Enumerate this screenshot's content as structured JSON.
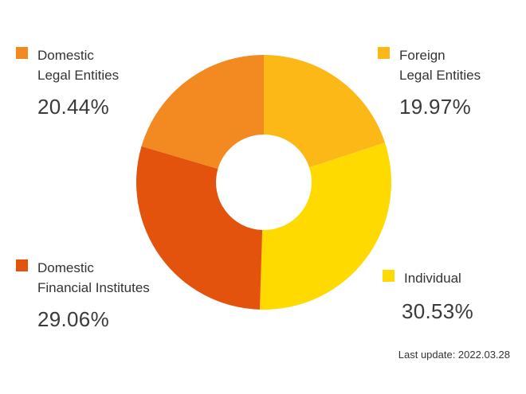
{
  "chart_data": {
    "type": "pie",
    "variant": "donut",
    "title": "",
    "segments": [
      {
        "name_lines": [
          "Domestic",
          "Legal Entities"
        ],
        "value": 20.44,
        "label": "20.44%",
        "color": "#F28A21"
      },
      {
        "name_lines": [
          "Foreign",
          "Legal Entities"
        ],
        "value": 19.97,
        "label": "19.97%",
        "color": "#FBB817"
      },
      {
        "name_lines": [
          "Individual"
        ],
        "value": 30.53,
        "label": "30.53%",
        "color": "#FFDA00"
      },
      {
        "name_lines": [
          "Domestic",
          "Financial Institutes"
        ],
        "value": 29.06,
        "label": "29.06%",
        "color": "#E3530E"
      }
    ],
    "legend_placement": "around chart (corners)"
  },
  "footnote": "Last update: 2022.03.28"
}
